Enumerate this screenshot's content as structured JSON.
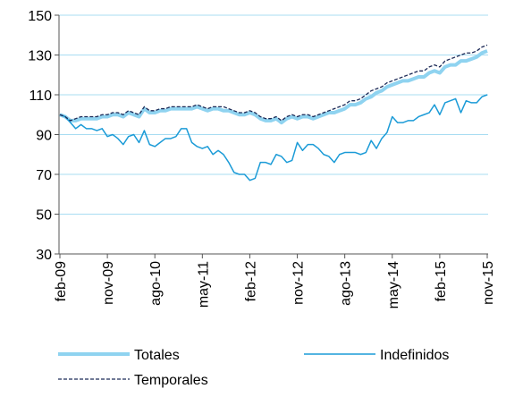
{
  "chart_data": {
    "type": "line",
    "categories": [
      "feb-09",
      null,
      null,
      null,
      null,
      null,
      null,
      null,
      null,
      "nov-09",
      null,
      null,
      null,
      null,
      null,
      null,
      null,
      null,
      "ago-10",
      null,
      null,
      null,
      null,
      null,
      null,
      null,
      null,
      "may-11",
      null,
      null,
      null,
      null,
      null,
      null,
      null,
      null,
      "feb-12",
      null,
      null,
      null,
      null,
      null,
      null,
      null,
      null,
      "nov-12",
      null,
      null,
      null,
      null,
      null,
      null,
      null,
      null,
      "ago-13",
      null,
      null,
      null,
      null,
      null,
      null,
      null,
      null,
      "may-14",
      null,
      null,
      null,
      null,
      null,
      null,
      null,
      null,
      "feb-15",
      null,
      null,
      null,
      null,
      null,
      null,
      null,
      null,
      "nov-15"
    ],
    "series": [
      {
        "name": "Totales",
        "color": "#8fd3f0",
        "line_width": 4,
        "line_style": "solid",
        "values": [
          100,
          99,
          97,
          97,
          98,
          98,
          98,
          98,
          99,
          99,
          100,
          100,
          99,
          101,
          100,
          99,
          103,
          101,
          101,
          102,
          102,
          103,
          103,
          103,
          103,
          103,
          104,
          103,
          102,
          103,
          103,
          102,
          102,
          101,
          100,
          100,
          101,
          100,
          98,
          97,
          97,
          98,
          96,
          98,
          99,
          98,
          99,
          99,
          98,
          99,
          100,
          101,
          101,
          102,
          103,
          105,
          105,
          106,
          108,
          109,
          111,
          112,
          114,
          115,
          116,
          117,
          117,
          118,
          119,
          119,
          121,
          122,
          121,
          124,
          125,
          125,
          127,
          127,
          128,
          129,
          131,
          132
        ]
      },
      {
        "name": "Indefinidos",
        "color": "#1b9bd7",
        "line_width": 1.5,
        "line_style": "solid",
        "values": [
          100,
          99,
          96,
          93,
          95,
          93,
          93,
          92,
          93,
          89,
          90,
          88,
          85,
          89,
          90,
          86,
          92,
          85,
          84,
          86,
          88,
          88,
          89,
          93,
          93,
          86,
          84,
          83,
          84,
          80,
          82,
          80,
          76,
          71,
          70,
          70,
          67,
          68,
          76,
          76,
          75,
          80,
          79,
          76,
          77,
          86,
          82,
          85,
          85,
          83,
          80,
          79,
          76,
          80,
          81,
          81,
          81,
          80,
          81,
          87,
          83,
          88,
          91,
          99,
          96,
          96,
          97,
          97,
          99,
          100,
          101,
          105,
          100,
          106,
          107,
          108,
          101,
          107,
          106,
          106,
          109,
          110
        ]
      },
      {
        "name": "Temporales",
        "color": "#1c2a57",
        "line_width": 1.3,
        "line_style": "dashed",
        "values": [
          100,
          99,
          97,
          98,
          99,
          99,
          99,
          99,
          100,
          100,
          101,
          101,
          100,
          102,
          101,
          100,
          104,
          102,
          102,
          103,
          103,
          104,
          104,
          104,
          104,
          104,
          105,
          104,
          103,
          104,
          104,
          104,
          103,
          102,
          101,
          101,
          102,
          101,
          99,
          98,
          98,
          99,
          97,
          99,
          100,
          99,
          100,
          100,
          99,
          100,
          101,
          102,
          103,
          104,
          105,
          107,
          107,
          108,
          110,
          112,
          113,
          114,
          116,
          117,
          118,
          119,
          120,
          121,
          122,
          122,
          124,
          125,
          124,
          127,
          128,
          129,
          130,
          131,
          131,
          132,
          134,
          135
        ]
      }
    ],
    "ylim": [
      30,
      150
    ],
    "yticks": [
      30,
      50,
      70,
      90,
      110,
      130,
      150
    ],
    "grid": true,
    "legend": "bottom"
  }
}
